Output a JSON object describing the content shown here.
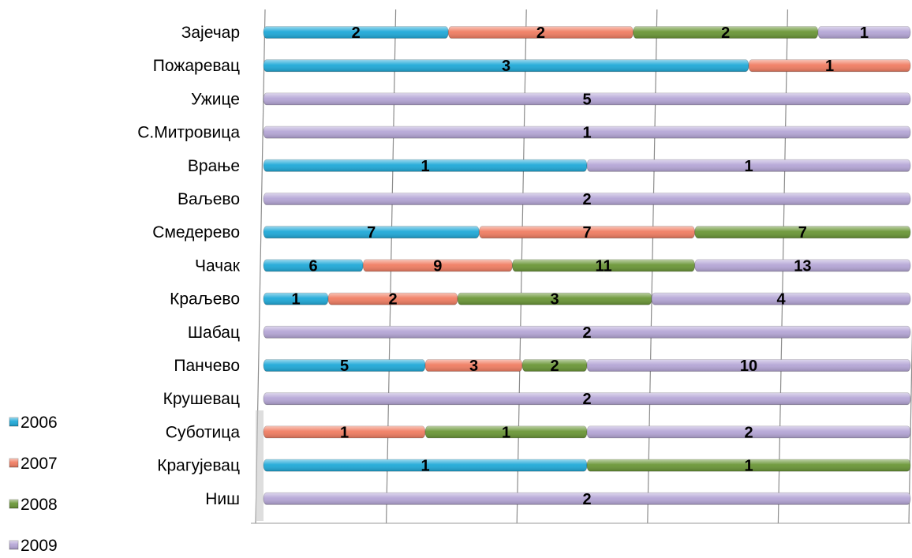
{
  "chart_data": {
    "type": "bar",
    "orientation": "horizontal",
    "stacked": "percent",
    "categories": [
      "Зајечар",
      "Пожаревац",
      "Ужице",
      "С.Митровица",
      "Врање",
      "Ваљево",
      "Смедерево",
      "Чачак",
      "Краљево",
      "Шабац",
      "Панчево",
      "Крушевац",
      "Суботица",
      "Крагујевац",
      "Ниш"
    ],
    "series": [
      {
        "name": "2006",
        "color": "#1FA9D8",
        "values": [
          2,
          3,
          null,
          null,
          1,
          null,
          7,
          6,
          1,
          null,
          5,
          null,
          null,
          1,
          null
        ]
      },
      {
        "name": "2007",
        "color": "#F07D62",
        "values": [
          2,
          1,
          null,
          null,
          null,
          null,
          7,
          9,
          2,
          null,
          3,
          null,
          1,
          null,
          null
        ]
      },
      {
        "name": "2008",
        "color": "#6A9636",
        "values": [
          2,
          null,
          null,
          null,
          null,
          null,
          7,
          11,
          3,
          null,
          2,
          null,
          1,
          1,
          null
        ]
      },
      {
        "name": "2009",
        "color": "#B5A6D6",
        "values": [
          1,
          null,
          5,
          1,
          1,
          2,
          null,
          13,
          4,
          2,
          10,
          2,
          2,
          null,
          2
        ]
      }
    ],
    "grid": true,
    "gridlines": 5,
    "legend": "left-bottom",
    "title": "",
    "xlabel": "",
    "ylabel": ""
  }
}
